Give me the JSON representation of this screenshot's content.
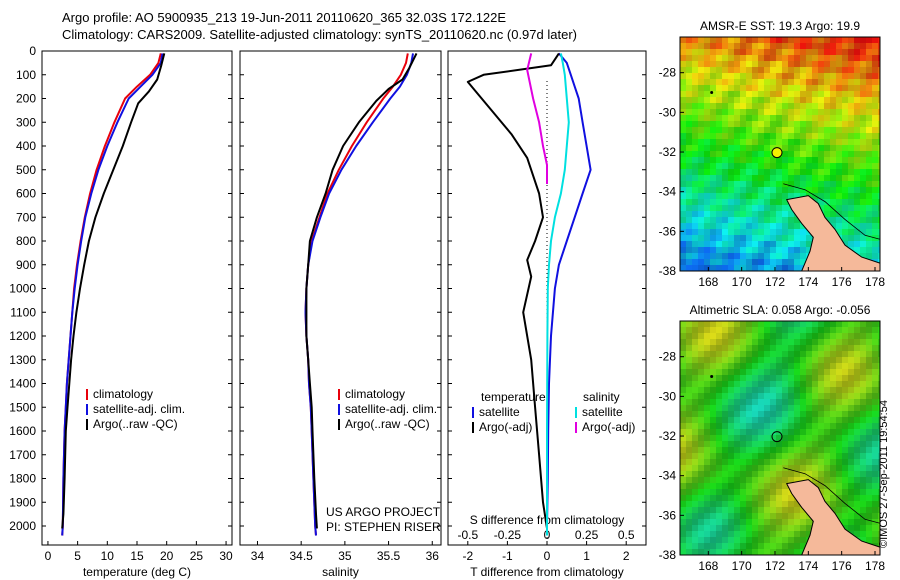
{
  "header": {
    "line1": "Argo profile: AO 5900935_213 19-Jun-2011 20110620_365 32.03S 172.122E",
    "line2": "Climatology: CARS2009. Satellite-adjusted climatology: synTS_20110620.nc (0.97d later)"
  },
  "footer": {
    "signature": "©IMOS 27-Sep-2011 19:54:54"
  },
  "colors": {
    "climatology": "#e8000b",
    "satellite": "#1010e0",
    "argo": "#000000",
    "sat_diff": "#00e0e0",
    "argo_salt_diff": "#e000e0"
  },
  "chart_data": [
    {
      "type": "line",
      "panel": "temperature",
      "xlabel": "temperature (deg C)",
      "ylabel": "",
      "xlim": [
        -1,
        31
      ],
      "ylim": [
        2080,
        0
      ],
      "xticks": [
        "0",
        "5",
        "10",
        "15",
        "20",
        "25",
        "30"
      ],
      "yticks": [
        "0",
        "100",
        "200",
        "300",
        "400",
        "500",
        "600",
        "700",
        "800",
        "900",
        "1000",
        "1100",
        "1200",
        "1300",
        "1400",
        "1500",
        "1600",
        "1700",
        "1800",
        "1900",
        "2000"
      ],
      "legend": [
        "climatology",
        "satellite-adj. clim.",
        "Argo(..raw -QC)"
      ],
      "series": [
        {
          "name": "climatology",
          "color": "#e8000b",
          "x": [
            19.0,
            18.6,
            17.2,
            15.0,
            13.0,
            11.2,
            9.6,
            8.2,
            7.1,
            6.2,
            5.5,
            4.9,
            4.4,
            4.1,
            3.8,
            3.5,
            3.2,
            3.0,
            2.8,
            2.6,
            2.5,
            2.4
          ],
          "y": [
            10,
            50,
            100,
            150,
            200,
            300,
            400,
            500,
            600,
            700,
            800,
            900,
            1000,
            1100,
            1200,
            1300,
            1400,
            1500,
            1600,
            1800,
            2000,
            2040
          ]
        },
        {
          "name": "satellite-adj. clim.",
          "color": "#1010e0",
          "x": [
            19.3,
            19.0,
            17.6,
            15.6,
            13.6,
            11.7,
            10.0,
            8.5,
            7.3,
            6.3,
            5.6,
            5.0,
            4.5,
            4.1,
            3.8,
            3.5,
            3.2,
            3.0,
            2.8,
            2.6,
            2.5,
            2.4
          ],
          "y": [
            10,
            50,
            100,
            150,
            200,
            300,
            400,
            500,
            600,
            700,
            800,
            900,
            1000,
            1100,
            1200,
            1300,
            1400,
            1500,
            1600,
            1800,
            2000,
            2040
          ]
        },
        {
          "name": "Argo(..raw -QC)",
          "color": "#000000",
          "x": [
            19.6,
            19.1,
            18.4,
            17.0,
            15.2,
            14.0,
            12.6,
            11.0,
            9.4,
            8.0,
            6.9,
            6.1,
            5.4,
            4.8,
            4.3,
            3.9,
            3.6,
            3.3,
            3.0,
            2.8,
            2.6,
            2.4
          ],
          "y": [
            10,
            60,
            120,
            170,
            220,
            300,
            400,
            500,
            600,
            700,
            800,
            900,
            1000,
            1100,
            1200,
            1300,
            1400,
            1500,
            1600,
            1800,
            1950,
            2010
          ]
        }
      ]
    },
    {
      "type": "line",
      "panel": "salinity",
      "xlabel": "salinity",
      "ylabel": "",
      "xlim": [
        33.8,
        36.1
      ],
      "ylim": [
        2080,
        0
      ],
      "xticks": [
        "34",
        "34.5",
        "35",
        "35.5",
        "36"
      ],
      "legend": [
        "climatology",
        "satellite-adj. clim.",
        "Argo(..raw -QC)"
      ],
      "annotation": [
        "US ARGO PROJECT",
        "PI: STEPHEN RISER"
      ],
      "series": [
        {
          "name": "climatology",
          "color": "#e8000b",
          "x": [
            35.72,
            35.7,
            35.64,
            35.55,
            35.44,
            35.25,
            35.08,
            34.93,
            34.8,
            34.71,
            34.62,
            34.58,
            34.56,
            34.55,
            34.56,
            34.58,
            34.59,
            34.61,
            34.62,
            34.64,
            34.66,
            34.67
          ],
          "y": [
            10,
            50,
            100,
            150,
            200,
            300,
            400,
            500,
            600,
            700,
            800,
            900,
            1000,
            1100,
            1200,
            1300,
            1400,
            1500,
            1600,
            1800,
            2000,
            2040
          ]
        },
        {
          "name": "satellite-adj. clim.",
          "color": "#1010e0",
          "x": [
            35.78,
            35.76,
            35.71,
            35.63,
            35.52,
            35.32,
            35.13,
            34.96,
            34.82,
            34.72,
            34.63,
            34.58,
            34.56,
            34.55,
            34.56,
            34.58,
            34.59,
            34.61,
            34.62,
            34.64,
            34.66,
            34.67
          ],
          "y": [
            10,
            50,
            100,
            150,
            200,
            300,
            400,
            500,
            600,
            700,
            800,
            900,
            1000,
            1100,
            1200,
            1300,
            1400,
            1500,
            1600,
            1800,
            2000,
            2040
          ]
        },
        {
          "name": "Argo(..raw -QC)",
          "color": "#000000",
          "x": [
            35.82,
            35.74,
            35.66,
            35.5,
            35.36,
            35.16,
            34.98,
            34.86,
            34.78,
            34.68,
            34.6,
            34.58,
            34.56,
            34.56,
            34.56,
            34.58,
            34.6,
            34.62,
            34.63,
            34.65,
            34.67,
            34.68
          ],
          "y": [
            10,
            70,
            120,
            160,
            210,
            300,
            400,
            500,
            600,
            700,
            800,
            900,
            1000,
            1100,
            1200,
            1300,
            1400,
            1500,
            1600,
            1800,
            1950,
            2010
          ]
        }
      ]
    },
    {
      "type": "line",
      "panel": "difference",
      "xlabel": "T difference from climatology",
      "xlabel_top": "S difference from climatology",
      "xlim": [
        -2.5,
        2.5
      ],
      "ylim": [
        2080,
        0
      ],
      "xticks": [
        "-2",
        "-1",
        "0",
        "1",
        "2"
      ],
      "xticks_s": [
        "-0.5",
        "-0.25",
        "0",
        "0.25",
        "0.5"
      ],
      "legend_headers": [
        "temperature",
        "salinity"
      ],
      "legend": [
        "satellite",
        "Argo(-adj)",
        "satellite",
        "Argo(-adj)"
      ],
      "series": [
        {
          "name": "satellite",
          "color": "#1010e0",
          "x": [
            0.3,
            0.5,
            0.6,
            0.7,
            0.8,
            0.9,
            1.0,
            1.1,
            0.9,
            0.7,
            0.5,
            0.3,
            0.2,
            0.1,
            0.05,
            0.03,
            0.02,
            0.01,
            0.0,
            0.0
          ],
          "y": [
            10,
            50,
            100,
            150,
            200,
            300,
            400,
            500,
            600,
            700,
            800,
            900,
            1000,
            1200,
            1400,
            1600,
            1800,
            1900,
            2000,
            2040
          ]
        },
        {
          "name": "Argo(-adj)",
          "color": "#000000",
          "x": [
            0.3,
            0.1,
            -1.6,
            -2.0,
            -1.8,
            -1.4,
            -0.9,
            -0.5,
            -0.2,
            -0.1,
            -0.3,
            -0.5,
            -0.4,
            -0.6,
            -0.4,
            -0.3,
            -0.2,
            -0.1,
            0.0
          ],
          "y": [
            10,
            60,
            100,
            130,
            170,
            250,
            350,
            450,
            600,
            700,
            800,
            880,
            950,
            1100,
            1300,
            1500,
            1700,
            1900,
            2010
          ]
        },
        {
          "name": "satellite",
          "color": "#00e0e0",
          "x": [
            0.35,
            0.4,
            0.45,
            0.5,
            0.55,
            0.5,
            0.45,
            0.35,
            0.2,
            0.1,
            0.05,
            0.02,
            0.01,
            0.0,
            0.0
          ],
          "y": [
            10,
            50,
            100,
            200,
            300,
            400,
            500,
            600,
            700,
            800,
            900,
            1000,
            1200,
            1600,
            2040
          ]
        },
        {
          "name": "Argo(-adj)",
          "color": "#e000e0",
          "x": [
            -0.4,
            -0.5,
            -0.35,
            -0.2,
            -0.1,
            0.0,
            0.0,
            0.0
          ],
          "y": [
            10,
            80,
            200,
            300,
            400,
            480,
            520,
            560
          ]
        }
      ]
    },
    {
      "type": "heatmap",
      "panel": "map-sst",
      "title": "AMSR-E SST: 19.3 Argo: 19.9",
      "xticks": [
        "168",
        "170",
        "172",
        "174",
        "176",
        "178"
      ],
      "yticks": [
        "-28",
        "-30",
        "-32",
        "-34",
        "-36",
        "-38"
      ],
      "xlim": [
        166.3,
        178.3
      ],
      "ylim": [
        -38,
        -26.2
      ],
      "argo_position": [
        172.12,
        -32.03
      ]
    },
    {
      "type": "heatmap",
      "panel": "map-sla",
      "title": "Altimetric SLA: 0.058 Argo: -0.056",
      "xticks": [
        "168",
        "170",
        "172",
        "174",
        "176",
        "178"
      ],
      "yticks": [
        "-28",
        "-30",
        "-32",
        "-34",
        "-36",
        "-38"
      ],
      "xlim": [
        166.3,
        178.3
      ],
      "ylim": [
        -38,
        -26.2
      ],
      "argo_position": [
        172.12,
        -32.03
      ]
    }
  ]
}
